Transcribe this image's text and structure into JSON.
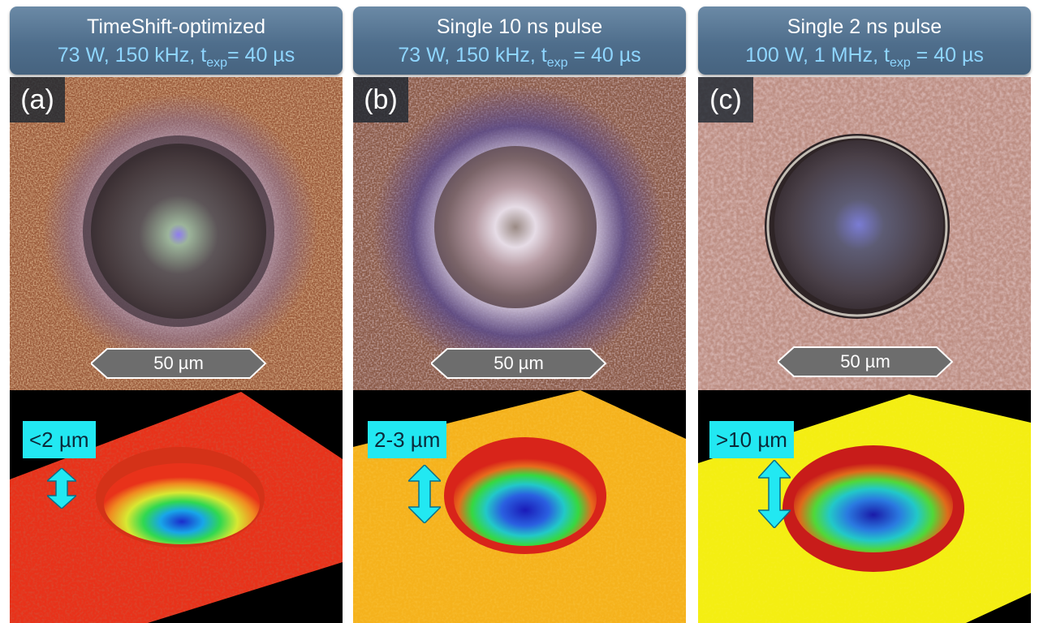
{
  "panels": [
    {
      "title": "TimeShift-optimized",
      "subtitle_pre": "73 W, 150 kHz, t",
      "subtitle_sub": "exp",
      "subtitle_post": "= 40 µs",
      "letter": "(a)",
      "scale": "50 µm",
      "depth": "<2 µm",
      "surface_color": "#e8321a",
      "micro_bg": "#9a5a3a"
    },
    {
      "title": "Single 10 ns pulse",
      "subtitle_pre": "73 W, 150 kHz, t",
      "subtitle_sub": "exp",
      "subtitle_post": " = 40 µs",
      "letter": "(b)",
      "scale": "50 µm",
      "depth": "2-3 µm",
      "surface_color": "#f5b21c",
      "micro_bg": "#8a5a48"
    },
    {
      "title": "Single 2 ns pulse",
      "subtitle_pre": "100 W, 1 MHz, t",
      "subtitle_sub": "exp",
      "subtitle_post": " = 40 µs",
      "letter": "(c)",
      "scale": "50 µm",
      "depth": ">10 µm",
      "surface_color": "#f4ee12",
      "micro_bg": "#bd8f84"
    }
  ]
}
